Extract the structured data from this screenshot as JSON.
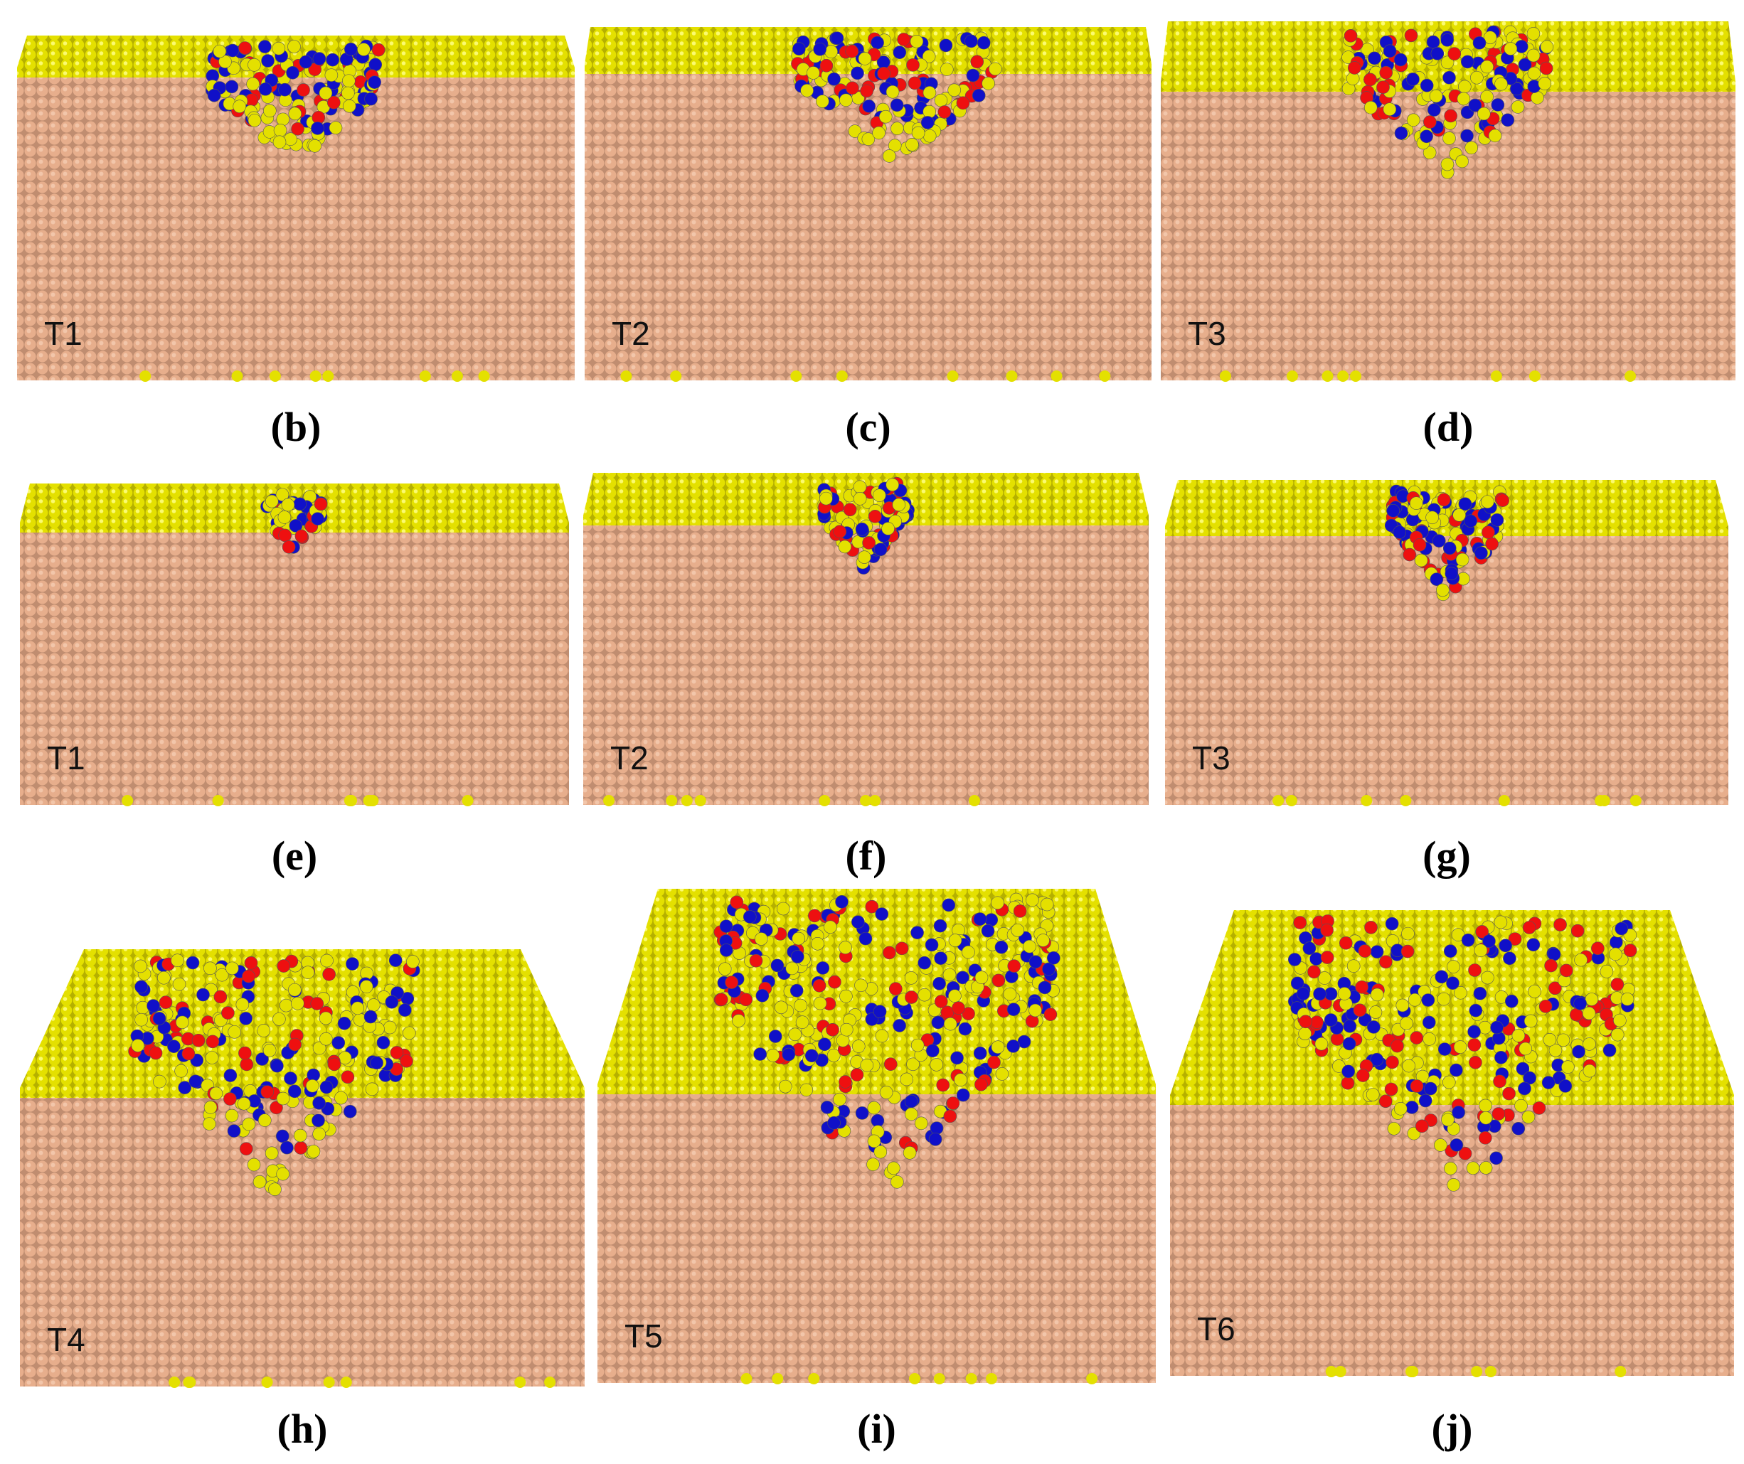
{
  "panels": [
    {
      "tag": "T1",
      "caption": "(b)"
    },
    {
      "tag": "T2",
      "caption": "(c)"
    },
    {
      "tag": "T3",
      "caption": "(d)"
    },
    {
      "tag": "T1",
      "caption": "(e)"
    },
    {
      "tag": "T2",
      "caption": "(f)"
    },
    {
      "tag": "T3",
      "caption": "(g)"
    },
    {
      "tag": "T4",
      "caption": "(h)"
    },
    {
      "tag": "T5",
      "caption": "(i)"
    },
    {
      "tag": "T6",
      "caption": "(j)"
    }
  ]
}
